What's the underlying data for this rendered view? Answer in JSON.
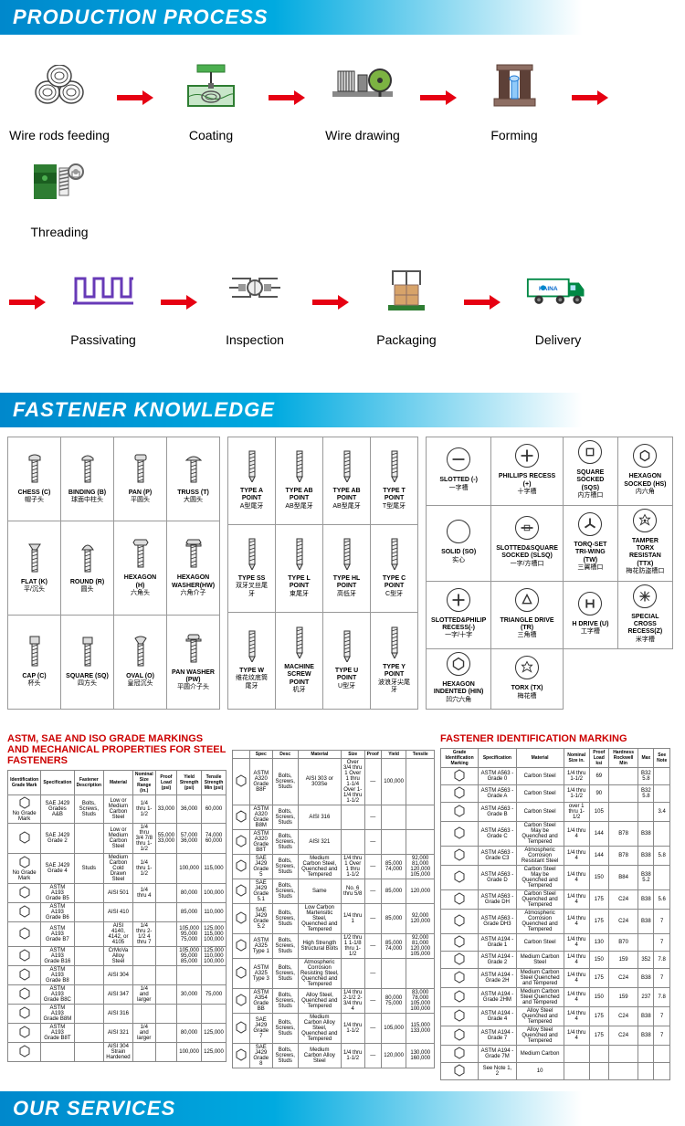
{
  "headers": {
    "production": "PRODUCTION PROCESS",
    "knowledge": "FASTENER KNOWLEDGE",
    "services": "OUR SERVICES"
  },
  "process_steps_row1": [
    {
      "label": "Wire rods feeding",
      "icon": "wire-rods"
    },
    {
      "label": "Coating",
      "icon": "coating"
    },
    {
      "label": "Wire drawing",
      "icon": "drawing"
    },
    {
      "label": "Forming",
      "icon": "forming"
    },
    {
      "label": "Threading",
      "icon": "threading"
    }
  ],
  "process_steps_row2": [
    {
      "label": "Passivating",
      "icon": "passivating"
    },
    {
      "label": "Inspection",
      "icon": "inspection"
    },
    {
      "label": "Packaging",
      "icon": "packaging"
    },
    {
      "label": "Delivery",
      "icon": "delivery"
    }
  ],
  "head_types": [
    [
      {
        "en": "CHESS (C)",
        "cn": "帽子头"
      },
      {
        "en": "BINDING (B)",
        "cn": "球面中柱头"
      },
      {
        "en": "PAN (P)",
        "cn": "平圆头"
      },
      {
        "en": "TRUSS (T)",
        "cn": "大圆头"
      }
    ],
    [
      {
        "en": "FLAT (K)",
        "cn": "平/沉头"
      },
      {
        "en": "ROUND (R)",
        "cn": "圆头"
      },
      {
        "en": "HEXAGON (H)",
        "cn": "六角头"
      },
      {
        "en": "HEXAGON WASHER(HW)",
        "cn": "六角介子"
      }
    ],
    [
      {
        "en": "CAP (C)",
        "cn": "杯头"
      },
      {
        "en": "SQUARE (SQ)",
        "cn": "四方头"
      },
      {
        "en": "OVAL (O)",
        "cn": "皇冠沉头"
      },
      {
        "en": "PAN WASHER (PW)",
        "cn": "平圆介子头"
      }
    ]
  ],
  "point_types": [
    [
      {
        "en": "TYPE A POINT",
        "cn": "A型尾牙"
      },
      {
        "en": "TYPE AB POINT",
        "cn": "AB型尾牙"
      },
      {
        "en": "TYPE AB POINT",
        "cn": "AB型尾牙"
      },
      {
        "en": "TYPE T POINT",
        "cn": "T型尾牙"
      }
    ],
    [
      {
        "en": "TYPE SS",
        "cn": "双牙叉丝尾牙"
      },
      {
        "en": "TYPE L POINT",
        "cn": "束尾牙"
      },
      {
        "en": "TYPE HL POINT",
        "cn": "高低牙"
      },
      {
        "en": "TYPE C POINT",
        "cn": "C型牙"
      }
    ],
    [
      {
        "en": "TYPE W",
        "cn": "维花纹底筒尾牙"
      },
      {
        "en": "MACHINE SCREW POINT",
        "cn": "机牙"
      },
      {
        "en": "TYPE U POINT",
        "cn": "U型牙"
      },
      {
        "en": "TYPE Y POINT",
        "cn": "波浪牙尖尾牙"
      }
    ]
  ],
  "drive_types": [
    [
      {
        "en": "SLOTTED (-)",
        "cn": "一字槽"
      },
      {
        "en": "PHILLIPS RECESS (+)",
        "cn": "十字槽"
      },
      {
        "en": "SQUARE SOCKED (SQS)",
        "cn": "内方槽口"
      },
      {
        "en": "HEXAGON SOCKED (HS)",
        "cn": "内六角"
      }
    ],
    [
      {
        "en": "SOLID (SO)",
        "cn": "实心"
      },
      {
        "en": "SLOTTED&SQUARE SOCKED (SLSQ)",
        "cn": "一字/方槽口"
      },
      {
        "en": "TORQ-SET TRI-WING (TW)",
        "cn": "三翼槽口"
      },
      {
        "en": "TAMPER TORX RESISTAN (TTX)",
        "cn": "梅花防盗槽口"
      }
    ],
    [
      {
        "en": "SLOTTED&PHILIP RECESS(-)",
        "cn": "一字/十字"
      },
      {
        "en": "TRIANGLE DRIVE (TR)",
        "cn": "三角槽"
      },
      {
        "en": "H DRIVE (U)",
        "cn": "工字槽"
      },
      {
        "en": "SPECIAL CROSS RECESS(Z)",
        "cn": "米字槽"
      }
    ],
    [
      {
        "en": "HEXAGON INDENTED (HIN)",
        "cn": "凹穴六角"
      },
      {
        "en": "TORX (TX)",
        "cn": "梅花槽"
      },
      {
        "en": "",
        "cn": ""
      },
      {
        "en": "",
        "cn": ""
      }
    ]
  ],
  "astm_title": "ASTM, SAE AND ISO GRADE MARKINGS AND MECHANICAL PROPERTIES FOR STEEL FASTENERS",
  "astm_title_color": "#cc0000",
  "fim_title": "FASTENER IDENTIFICATION MARKING",
  "fim_title_color": "#cc0000",
  "astm_headers": [
    "Identification Grade Mark",
    "Specification",
    "Fastener Description",
    "Material",
    "Nominal Size Range (in.)",
    "Proof Load (psi)",
    "Yield Strength (psi)",
    "Tensile Strength Min (psi)"
  ],
  "astm_rows": [
    {
      "mark": "No Grade Mark",
      "spec": "SAE J429 Grades A&B",
      "desc": "Bolts, Screws, Studs",
      "mat": "Low or Medium Carbon Steel",
      "size": "1/4 thru 1-1/2",
      "proof": "33,000",
      "yield": "36,000",
      "tensile": "60,000"
    },
    {
      "mark": "",
      "spec": "SAE J429 Grade 2",
      "desc": "",
      "mat": "Low or Medium Carbon Steel",
      "size": "1/4 thru 3/4 7/8 thru 1-1/2",
      "proof": "55,000 33,000",
      "yield": "57,000 36,000",
      "tensile": "74,000 60,000"
    },
    {
      "mark": "No Grade Mark",
      "spec": "SAE J429 Grade 4",
      "desc": "Studs",
      "mat": "Medium Carbon Cold Drawn Steel",
      "size": "1/4 thru 1-1/2",
      "proof": "",
      "yield": "100,000",
      "tensile": "115,000"
    },
    {
      "mark": "",
      "spec": "ASTM A193 Grade B5",
      "desc": "",
      "mat": "AISI 501",
      "size": "1/4 thru 4",
      "proof": "",
      "yield": "80,000",
      "tensile": "100,000"
    },
    {
      "mark": "",
      "spec": "ASTM A193 Grade B6",
      "desc": "",
      "mat": "AISI 410",
      "size": "",
      "proof": "",
      "yield": "85,000",
      "tensile": "110,000"
    },
    {
      "mark": "",
      "spec": "ASTM A193 Grade B7",
      "desc": "",
      "mat": "AISI 4140, 4142, or 4105",
      "size": "1/4 thru 2-1/2 4 thru 7",
      "proof": "",
      "yield": "105,000 95,000 75,000",
      "tensile": "125,000 115,000 100,000"
    },
    {
      "mark": "",
      "spec": "ASTM A193 Grade B16",
      "desc": "",
      "mat": "CrMoVa Alloy Steel",
      "size": "",
      "proof": "",
      "yield": "105,000 95,000 85,000",
      "tensile": "125,000 110,000 100,000"
    },
    {
      "mark": "",
      "spec": "ASTM A193 Grade B8",
      "desc": "",
      "mat": "AISI 304",
      "size": "",
      "proof": "",
      "yield": "",
      "tensile": ""
    },
    {
      "mark": "",
      "spec": "ASTM A193 Grade B8C",
      "desc": "",
      "mat": "AISI 347",
      "size": "1/4 and larger",
      "proof": "",
      "yield": "30,000",
      "tensile": "75,000"
    },
    {
      "mark": "",
      "spec": "ASTM A193 Grade B8M",
      "desc": "",
      "mat": "AISI 316",
      "size": "",
      "proof": "",
      "yield": "",
      "tensile": ""
    },
    {
      "mark": "",
      "spec": "ASTM A193 Grade B8T",
      "desc": "",
      "mat": "AISI 321",
      "size": "1/4 and larger",
      "proof": "",
      "yield": "80,000",
      "tensile": "125,000"
    },
    {
      "mark": "",
      "spec": "",
      "desc": "",
      "mat": "AISI 304 Strain Hardened",
      "size": "",
      "proof": "",
      "yield": "100,000",
      "tensile": "125,000"
    }
  ],
  "astm_rows2": [
    {
      "spec": "ASTM A320 Grade B8F",
      "mat": "AISI 303 or 303Se",
      "size": "Over 3/4 thru 1 Over 1 thru 1-1/4 Over 1-1/4 thru 1-1/2",
      "yield": "100,000",
      "tensile": ""
    },
    {
      "spec": "ASTM A320 Grade B8M",
      "mat": "AISI 316",
      "size": "",
      "yield": "",
      "tensile": ""
    },
    {
      "spec": "ASTM A320 Grade B8T",
      "mat": "AISI 321",
      "size": "",
      "yield": "",
      "tensile": ""
    },
    {
      "spec": "SAE J429 Grade 5",
      "mat": "Medium Carbon Steel, Quenched and Tempered",
      "size": "1/4 thru 1 Over 1 thru 1-1/2",
      "yield": "85,000 74,000",
      "tensile": "92,000 81,000 120,000 105,000"
    },
    {
      "spec": "SAE J429 Grade 5.1",
      "mat": "Same",
      "size": "No. 6 thru 5/8",
      "yield": "85,000",
      "tensile": "120,000"
    },
    {
      "spec": "SAE J429 Grade 5.2",
      "mat": "Low Carbon Martensitic Steel, Quenched and Tempered",
      "size": "1/4 thru 1",
      "yield": "85,000",
      "tensile": "92,000 120,000"
    },
    {
      "spec": "ASTM A325 Type 1",
      "mat": "High Strength Structural Bolts",
      "size": "1/2 thru 1 1-1/8 thru 1-1/2",
      "yield": "85,000 74,000",
      "tensile": "92,000 81,000 120,000 105,000"
    },
    {
      "spec": "ASTM A325 Type 3",
      "mat": "Atmospheric Corrosion Resisting Steel, Quenched and Tempered",
      "size": "",
      "yield": "",
      "tensile": ""
    },
    {
      "spec": "ASTM A354 Grade BB",
      "mat": "Alloy Steel, Quenched and Tempered",
      "size": "1/4 thru 2-1/2 2-3/4 thru 4",
      "yield": "80,000 75,000",
      "tensile": "83,000 78,000 105,000 100,000"
    },
    {
      "spec": "SAE J429 Grade 7",
      "mat": "Medium Carbon Alloy Steel, Quenched and Tempered",
      "size": "1/4 thru 1-1/2",
      "yield": "105,000",
      "tensile": "115,000 133,000"
    },
    {
      "spec": "SAE J429 Grade 8",
      "mat": "Medium Carbon Alloy Steel",
      "size": "1/4 thru 1-1/2",
      "yield": "120,000",
      "tensile": "130,000 160,000"
    }
  ],
  "fim_headers": [
    "Grade Identification Marking",
    "Specification",
    "Material",
    "Nominal Size in.",
    "Proof Load ksi",
    "Hardness Rockwell Min",
    "Max",
    "See Note"
  ],
  "fim_rows": [
    {
      "spec": "ASTM A563 - Grade 0",
      "mat": "Carbon Steel",
      "size": "1/4 thru 1-1/2",
      "proof": "69",
      "hmin": "",
      "hmax": "B32 5.8",
      "note": ""
    },
    {
      "spec": "ASTM A563 - Grade A",
      "mat": "Carbon Steel",
      "size": "1/4 thru 1-1/2",
      "proof": "90",
      "hmin": "",
      "hmax": "B32 5.8",
      "note": ""
    },
    {
      "spec": "ASTM A563 - Grade B",
      "mat": "Carbon Steel",
      "size": "over 1 thru 1-1/2",
      "proof": "105",
      "hmin": "",
      "hmax": "",
      "note": "3.4"
    },
    {
      "spec": "ASTM A563 - Grade C",
      "mat": "Carbon Steel May be Quenched and Tempered",
      "size": "1/4 thru 4",
      "proof": "144",
      "hmin": "B78",
      "hmax": "B38",
      "note": ""
    },
    {
      "spec": "ASTM A563 - Grade C3",
      "mat": "Atmospheric Corrosion Resistant Steel",
      "size": "1/4 thru 4",
      "proof": "144",
      "hmin": "B78",
      "hmax": "B38",
      "note": "5.8"
    },
    {
      "spec": "ASTM A563 - Grade D",
      "mat": "Carbon Steel May be Quenched and Tempered",
      "size": "1/4 thru 4",
      "proof": "150",
      "hmin": "B84",
      "hmax": "B38 5.2",
      "note": ""
    },
    {
      "spec": "ASTM A563 - Grade DH",
      "mat": "Carbon Steel Quenched and Tempered",
      "size": "1/4 thru 4",
      "proof": "175",
      "hmin": "C24",
      "hmax": "B38",
      "note": "5.6"
    },
    {
      "spec": "ASTM A563 - Grade DH3",
      "mat": "Atmospheric Corrosion Quenched and Tempered",
      "size": "1/4 thru 4",
      "proof": "175",
      "hmin": "C24",
      "hmax": "B38",
      "note": "7"
    },
    {
      "spec": "ASTM A194 - Grade 1",
      "mat": "Carbon Steel",
      "size": "1/4 thru 4",
      "proof": "130",
      "hmin": "B70",
      "hmax": "",
      "note": "7"
    },
    {
      "spec": "ASTM A194 - Grade 2",
      "mat": "Medium Carbon Steel",
      "size": "1/4 thru 4",
      "proof": "150",
      "hmin": "159",
      "hmax": "352",
      "note": "7.8"
    },
    {
      "spec": "ASTM A194 - Grade 2H",
      "mat": "Medium Carbon Steel Quenched and Tempered",
      "size": "1/4 thru 4",
      "proof": "175",
      "hmin": "C24",
      "hmax": "B38",
      "note": "7"
    },
    {
      "spec": "ASTM A194 - Grade 2HM",
      "mat": "Medium Carbon Steel Quenched and Tempered",
      "size": "1/4 thru 4",
      "proof": "150",
      "hmin": "159",
      "hmax": "237",
      "note": "7.8"
    },
    {
      "spec": "ASTM A194 - Grade 4",
      "mat": "Alloy Steel Quenched and Tempered",
      "size": "1/4 thru 4",
      "proof": "175",
      "hmin": "C24",
      "hmax": "B38",
      "note": "7"
    },
    {
      "spec": "ASTM A194 - Grade 7",
      "mat": "Alloy Steel Quenched and Tempered",
      "size": "1/4 thru 4",
      "proof": "175",
      "hmin": "C24",
      "hmax": "B38",
      "note": "7"
    },
    {
      "spec": "ASTM A194 - Grade 7M",
      "mat": "Medium Carbon",
      "size": "",
      "proof": "",
      "hmin": "",
      "hmax": "",
      "note": ""
    },
    {
      "spec": "See Note 1, 2",
      "mat": "10",
      "size": "",
      "proof": "",
      "hmin": "",
      "hmax": "",
      "note": ""
    }
  ],
  "colors": {
    "header_gradient_start": "#0088cc",
    "header_gradient_mid": "#00aae0",
    "arrow": "#e60012",
    "truck_cab": "#008844",
    "truck_body": "#ffffff",
    "brand_text": "HAINA"
  }
}
